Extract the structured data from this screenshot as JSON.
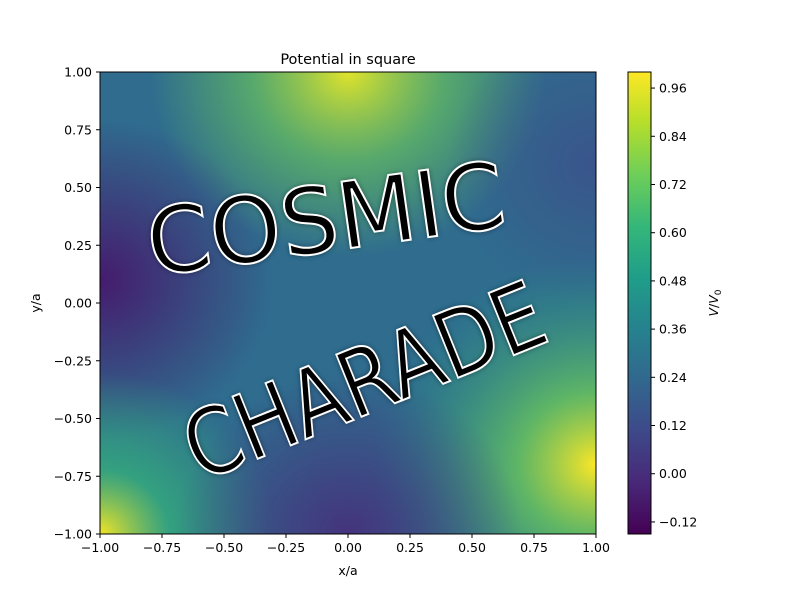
{
  "chart_data": {
    "type": "heatmap",
    "title": "Potential in square",
    "xlabel": "x/a",
    "ylabel": "y/a",
    "xlim": [
      -1.0,
      1.0
    ],
    "ylim": [
      -1.0,
      1.0
    ],
    "x_ticks": [
      "−1.00",
      "−0.75",
      "−0.50",
      "−0.25",
      "0.00",
      "0.25",
      "0.50",
      "0.75",
      "1.00"
    ],
    "y_ticks": [
      "−1.00",
      "−0.75",
      "−0.50",
      "−0.25",
      "0.00",
      "0.25",
      "0.50",
      "0.75",
      "1.00"
    ],
    "colorbar": {
      "label": "V/V0",
      "range": [
        -0.15,
        1.0
      ],
      "ticks": [
        "−0.12",
        "0.00",
        "0.12",
        "0.24",
        "0.36",
        "0.48",
        "0.60",
        "0.72",
        "0.84",
        "0.96"
      ],
      "colormap": "viridis"
    },
    "annotations": [
      {
        "text": "COSMIC",
        "words": [
          "C",
          "O",
          "S",
          "M",
          "I",
          "C"
        ],
        "potential": 1.0
      },
      {
        "text": "CHARADE",
        "words": [
          "C",
          "H",
          "A",
          "R",
          "A",
          "D",
          "E"
        ],
        "potential": 1.0
      }
    ],
    "grid": false,
    "legend": "none"
  },
  "colors": {
    "viridis": [
      "#440154",
      "#482878",
      "#3e4989",
      "#31688e",
      "#26828e",
      "#1f9e89",
      "#35b779",
      "#6ece58",
      "#b5de2b",
      "#fde725"
    ],
    "letter_fill": "#a6d43a",
    "letter_core": "#ffffff"
  }
}
